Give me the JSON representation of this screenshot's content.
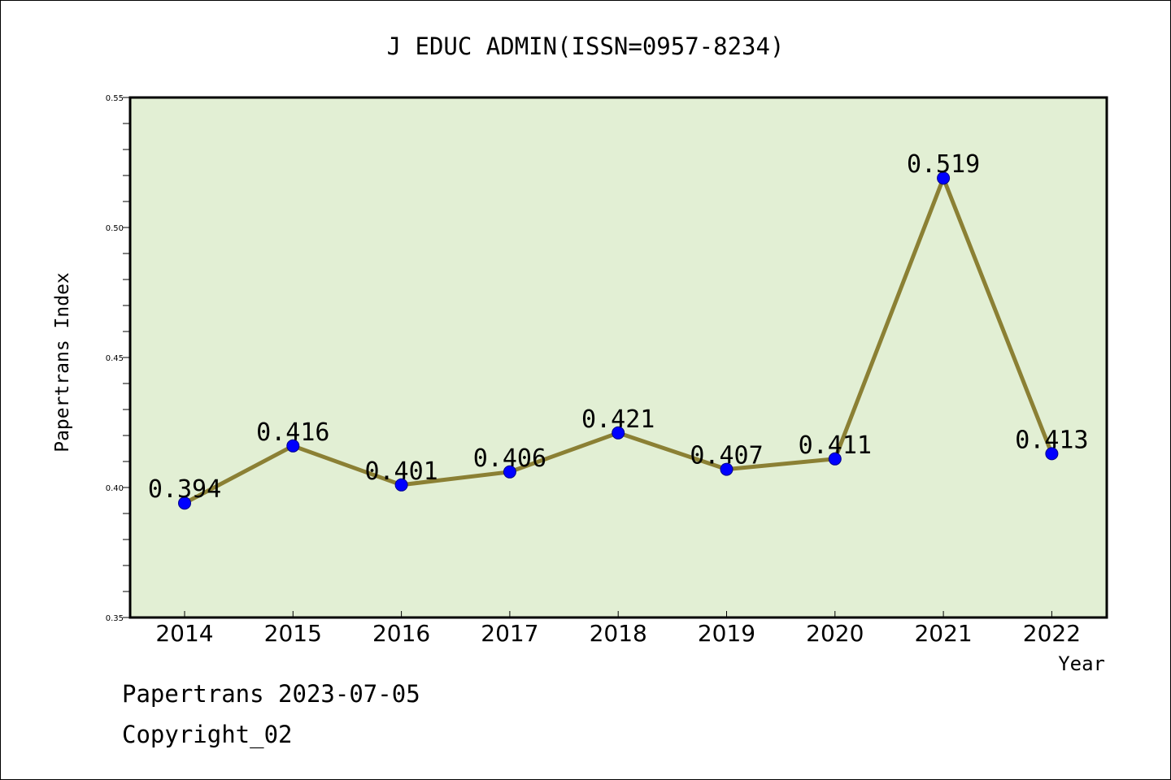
{
  "chart_data": {
    "type": "line",
    "title": "J EDUC ADMIN(ISSN=0957-8234)",
    "xlabel": "Year",
    "ylabel": "Papertrans Index",
    "categories": [
      "2014",
      "2015",
      "2016",
      "2017",
      "2018",
      "2019",
      "2020",
      "2021",
      "2022"
    ],
    "values": [
      0.394,
      0.416,
      0.401,
      0.406,
      0.421,
      0.407,
      0.411,
      0.519,
      0.413
    ],
    "value_labels": [
      "0.394",
      "0.416",
      "0.401",
      "0.406",
      "0.421",
      "0.407",
      "0.411",
      "0.519",
      "0.413"
    ],
    "ylim": [
      0.35,
      0.55
    ],
    "yticks": [
      "0.35",
      "0.40",
      "0.45",
      "0.50",
      "0.55"
    ],
    "grid": false,
    "colors": {
      "plot_bg": "#e2efd4",
      "line": "#8b8034",
      "marker": "#0000ff"
    }
  },
  "footer": {
    "line1": "Papertrans 2023-07-05",
    "line2": "Copyright_02"
  }
}
